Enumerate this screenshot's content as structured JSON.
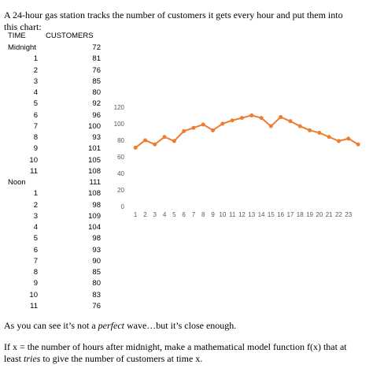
{
  "intro": "A 24-hour gas station tracks the number of customers it gets every hour and put them into this chart:",
  "table": {
    "headers": [
      "TIME",
      "CUSTOMERS"
    ],
    "rows": [
      [
        "Midnight",
        72
      ],
      [
        "1",
        81
      ],
      [
        "2",
        76
      ],
      [
        "3",
        85
      ],
      [
        "4",
        80
      ],
      [
        "5",
        92
      ],
      [
        "6",
        96
      ],
      [
        "7",
        100
      ],
      [
        "8",
        93
      ],
      [
        "9",
        101
      ],
      [
        "10",
        105
      ],
      [
        "11",
        108
      ],
      [
        "Noon",
        111
      ],
      [
        "1",
        108
      ],
      [
        "2",
        98
      ],
      [
        "3",
        109
      ],
      [
        "4",
        104
      ],
      [
        "5",
        98
      ],
      [
        "6",
        93
      ],
      [
        "7",
        90
      ],
      [
        "8",
        85
      ],
      [
        "9",
        80
      ],
      [
        "10",
        83
      ],
      [
        "11",
        76
      ]
    ]
  },
  "chart_data": {
    "type": "line",
    "color": "#ed7d31",
    "categories": [
      "1",
      "2",
      "3",
      "4",
      "5",
      "6",
      "7",
      "8",
      "9",
      "10",
      "11",
      "12",
      "13",
      "14",
      "15",
      "16",
      "17",
      "18",
      "19",
      "20",
      "21",
      "22",
      "23",
      null
    ],
    "values": [
      72,
      81,
      76,
      85,
      80,
      92,
      96,
      100,
      93,
      101,
      105,
      108,
      111,
      108,
      98,
      109,
      104,
      98,
      93,
      90,
      85,
      80,
      83,
      76
    ],
    "ylim": [
      0,
      120
    ],
    "yticks": [
      0,
      20,
      40,
      60,
      80,
      100,
      120
    ],
    "grid": false
  },
  "paragraphs": [
    [
      "As you can see it’s not a ",
      "perfect",
      " wave…but it’s close enough."
    ],
    [
      "If x = the number of hours after midnight, make a mathematical model function f(x) that at least ",
      "tries",
      " to give the number of customers at time x."
    ]
  ]
}
